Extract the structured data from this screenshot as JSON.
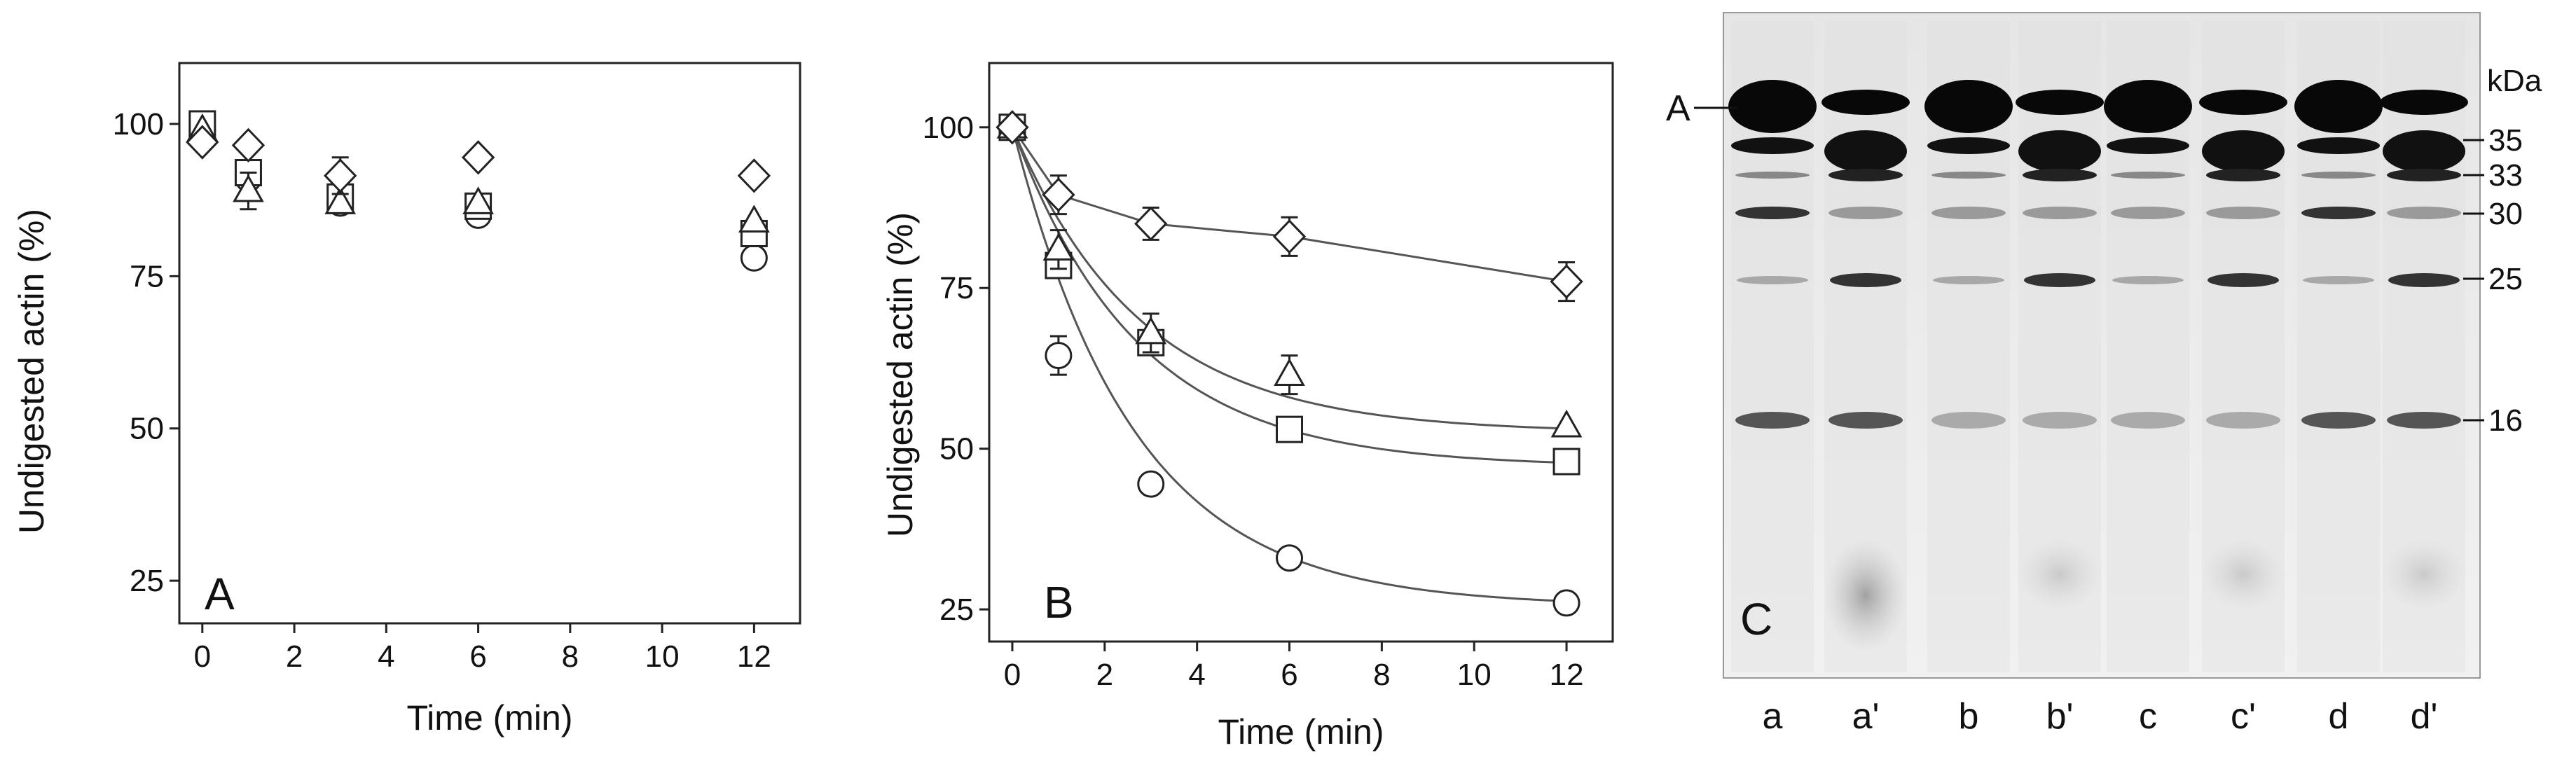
{
  "chart_data": [
    {
      "type": "scatter",
      "panel_label": "A",
      "xlabel": "Time (min)",
      "ylabel": "Undigested actin (%)",
      "xlim": [
        -0.5,
        13
      ],
      "ylim": [
        18,
        110
      ],
      "xticks": [
        "0",
        "2",
        "4",
        "6",
        "8",
        "10",
        "12"
      ],
      "yticks": [
        "25",
        "50",
        "75",
        "100"
      ],
      "fit_curves": false,
      "series": [
        {
          "marker": "circle",
          "x": [
            0,
            1,
            3,
            6,
            12
          ],
          "y": [
            99,
            91,
            87,
            85,
            78
          ],
          "err": [
            0,
            0,
            0,
            0,
            0
          ]
        },
        {
          "marker": "square",
          "x": [
            0,
            1,
            3,
            6,
            12
          ],
          "y": [
            100,
            92,
            88,
            86.5,
            82
          ],
          "err": [
            0,
            0,
            0,
            0,
            0
          ]
        },
        {
          "marker": "triangle",
          "x": [
            0,
            1,
            3,
            6,
            12
          ],
          "y": [
            99,
            89,
            87,
            87,
            84
          ],
          "err": [
            0,
            3,
            0,
            0,
            0
          ]
        },
        {
          "marker": "diamond",
          "x": [
            0,
            1,
            3,
            6,
            12
          ],
          "y": [
            97,
            96.5,
            91.5,
            94.5,
            91.5
          ],
          "err": [
            0,
            0,
            3,
            0,
            0
          ]
        }
      ]
    },
    {
      "type": "line",
      "panel_label": "B",
      "xlabel": "Time (min)",
      "ylabel": "Undigested actin (%)",
      "xlim": [
        -0.5,
        13
      ],
      "ylim": [
        20,
        110
      ],
      "xticks": [
        "0",
        "2",
        "4",
        "6",
        "8",
        "10",
        "12"
      ],
      "yticks": [
        "25",
        "50",
        "75",
        "100"
      ],
      "fit_curves": true,
      "series": [
        {
          "marker": "circle",
          "x": [
            0,
            1,
            3,
            6,
            12
          ],
          "y": [
            100,
            64.5,
            44.5,
            33,
            26
          ],
          "err": [
            0,
            3,
            0,
            0,
            0
          ],
          "fit": {
            "plateau": 25.5,
            "k": 0.38
          }
        },
        {
          "marker": "square",
          "x": [
            0,
            1,
            3,
            6,
            12
          ],
          "y": [
            100,
            78.5,
            66.5,
            53,
            48
          ],
          "err": [
            0,
            0,
            0,
            0,
            0
          ],
          "fit": {
            "plateau": 47.2,
            "k": 0.37
          }
        },
        {
          "marker": "triangle",
          "x": [
            0,
            1,
            3,
            6,
            12
          ],
          "y": [
            100,
            81,
            68,
            61.5,
            53.5
          ],
          "err": [
            0,
            3,
            3,
            3,
            0
          ],
          "fit": {
            "plateau": 52.5,
            "k": 0.36
          }
        },
        {
          "marker": "diamond",
          "x": [
            0,
            1,
            3,
            6,
            12
          ],
          "y": [
            100,
            89.5,
            85,
            83,
            76
          ],
          "err": [
            0,
            3,
            2.5,
            3,
            3
          ],
          "connected": true
        }
      ]
    },
    {
      "type": "gel",
      "panel_label": "C",
      "marker_label": "A",
      "unit_label": "kDa",
      "mw_markers": [
        "35",
        "33",
        "30",
        "25",
        "16"
      ],
      "lanes": [
        "a",
        "a'",
        "b",
        "b'",
        "c",
        "c'",
        "d",
        "d'"
      ],
      "primed_lane_pattern": "primed lanes show increased 35/33/25/16 kDa fragments and a diffuse low-MW smear"
    }
  ]
}
